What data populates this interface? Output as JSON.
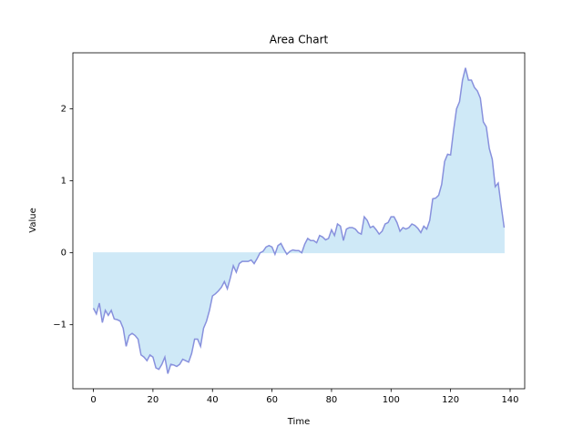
{
  "chart_data": {
    "type": "area",
    "title": "Area Chart",
    "xlabel": "Time",
    "ylabel": "Value",
    "x": [
      0,
      1,
      2,
      3,
      4,
      5,
      6,
      7,
      8,
      9,
      10,
      11,
      12,
      13,
      14,
      15,
      16,
      17,
      18,
      19,
      20,
      21,
      22,
      23,
      24,
      25,
      26,
      27,
      28,
      29,
      30,
      31,
      32,
      33,
      34,
      35,
      36,
      37,
      38,
      39,
      40,
      41,
      42,
      43,
      44,
      45,
      46,
      47,
      48,
      49,
      50,
      51,
      52,
      53,
      54,
      55,
      56,
      57,
      58,
      59,
      60,
      61,
      62,
      63,
      64,
      65,
      66,
      67,
      68,
      69,
      70,
      71,
      72,
      73,
      74,
      75,
      76,
      77,
      78,
      79,
      80,
      81,
      82,
      83,
      84,
      85,
      86,
      87,
      88,
      89,
      90,
      91,
      92,
      93,
      94,
      95,
      96,
      97,
      98,
      99,
      100,
      101,
      102,
      103,
      104,
      105,
      106,
      107,
      108,
      109,
      110,
      111,
      112,
      113,
      114,
      115,
      116,
      117,
      118,
      119,
      120,
      121,
      122,
      123,
      124,
      125,
      126,
      127,
      128,
      129,
      130,
      131,
      132,
      133,
      134,
      135,
      136,
      137,
      138
    ],
    "values": [
      -0.77,
      -0.85,
      -0.7,
      -0.97,
      -0.8,
      -0.87,
      -0.8,
      -0.92,
      -0.93,
      -0.95,
      -1.05,
      -1.3,
      -1.15,
      -1.12,
      -1.15,
      -1.2,
      -1.42,
      -1.45,
      -1.5,
      -1.42,
      -1.45,
      -1.6,
      -1.62,
      -1.55,
      -1.45,
      -1.68,
      -1.55,
      -1.56,
      -1.58,
      -1.55,
      -1.48,
      -1.5,
      -1.52,
      -1.4,
      -1.2,
      -1.2,
      -1.3,
      -1.05,
      -0.95,
      -0.8,
      -0.6,
      -0.57,
      -0.53,
      -0.48,
      -0.4,
      -0.5,
      -0.35,
      -0.18,
      -0.27,
      -0.15,
      -0.12,
      -0.12,
      -0.12,
      -0.1,
      -0.15,
      -0.08,
      0.0,
      0.02,
      0.08,
      0.1,
      0.08,
      -0.02,
      0.1,
      0.13,
      0.05,
      -0.02,
      0.02,
      0.04,
      0.03,
      0.03,
      0.0,
      0.12,
      0.2,
      0.17,
      0.17,
      0.14,
      0.24,
      0.22,
      0.18,
      0.2,
      0.32,
      0.24,
      0.4,
      0.37,
      0.17,
      0.33,
      0.35,
      0.35,
      0.33,
      0.28,
      0.26,
      0.5,
      0.45,
      0.35,
      0.37,
      0.32,
      0.26,
      0.3,
      0.4,
      0.42,
      0.5,
      0.5,
      0.42,
      0.3,
      0.35,
      0.33,
      0.35,
      0.4,
      0.38,
      0.34,
      0.28,
      0.37,
      0.33,
      0.45,
      0.75,
      0.76,
      0.8,
      0.95,
      1.27,
      1.37,
      1.36,
      1.7,
      2.0,
      2.1,
      2.4,
      2.57,
      2.4,
      2.4,
      2.3,
      2.25,
      2.15,
      1.82,
      1.75,
      1.45,
      1.3,
      0.92,
      0.97,
      0.65,
      0.35
    ],
    "fill_color": "#cfe9f7",
    "line_color": "#8891dd",
    "xlim": [
      -6.9,
      144.9
    ],
    "xticks": [
      0,
      20,
      40,
      60,
      80,
      100,
      120,
      140
    ],
    "ylim": [
      -1.89,
      2.78
    ],
    "yticks": [
      {
        "value": -1,
        "label": "−1"
      },
      0,
      1,
      2
    ]
  }
}
